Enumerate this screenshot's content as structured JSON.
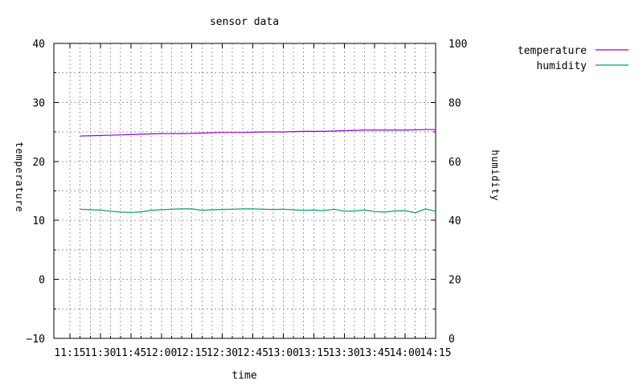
{
  "chart_data": {
    "type": "line",
    "title": "sensor data",
    "xlabel": "time",
    "ylabel_left": "temperature",
    "ylabel_right": "humidity",
    "x_ticks": [
      "11:15",
      "11:30",
      "11:45",
      "12:00",
      "12:15",
      "12:30",
      "12:45",
      "13:00",
      "13:15",
      "13:30",
      "13:45",
      "14:00",
      "14:15"
    ],
    "x_range": [
      "11:15",
      "14:15"
    ],
    "y_left": {
      "range": [
        -10,
        40
      ],
      "major_ticks": [
        -10,
        0,
        10,
        20,
        30,
        40
      ],
      "minor_step": 5
    },
    "y_right": {
      "range": [
        0,
        100
      ],
      "major_ticks": [
        0,
        20,
        40,
        60,
        80,
        100
      ],
      "minor_step": 10
    },
    "grid": true,
    "legend_position": "top-right, outside plot",
    "series": [
      {
        "name": "temperature",
        "axis": "left",
        "color": "#9400d3",
        "x": [
          "11:20",
          "11:30",
          "11:40",
          "11:50",
          "12:00",
          "12:10",
          "12:20",
          "12:30",
          "12:40",
          "12:50",
          "13:00",
          "13:10",
          "13:20",
          "13:30",
          "13:40",
          "13:50",
          "14:00",
          "14:10",
          "14:15"
        ],
        "values": [
          24.3,
          24.4,
          24.5,
          24.6,
          24.7,
          24.7,
          24.8,
          24.9,
          24.9,
          25.0,
          25.0,
          25.1,
          25.1,
          25.2,
          25.3,
          25.3,
          25.3,
          25.4,
          25.4
        ]
      },
      {
        "name": "humidity",
        "axis": "right",
        "color": "#009e73",
        "x": [
          "11:20",
          "11:25",
          "11:30",
          "11:35",
          "11:40",
          "11:45",
          "11:50",
          "11:55",
          "12:00",
          "12:05",
          "12:10",
          "12:15",
          "12:20",
          "12:25",
          "12:30",
          "12:35",
          "12:40",
          "12:45",
          "12:50",
          "12:55",
          "13:00",
          "13:05",
          "13:10",
          "13:15",
          "13:20",
          "13:25",
          "13:30",
          "13:35",
          "13:40",
          "13:45",
          "13:50",
          "13:55",
          "14:00",
          "14:05",
          "14:10",
          "14:15"
        ],
        "values": [
          43.8,
          43.6,
          43.5,
          43.1,
          42.8,
          42.7,
          42.9,
          43.4,
          43.6,
          43.8,
          43.9,
          43.9,
          43.4,
          43.6,
          43.7,
          43.8,
          43.9,
          43.9,
          43.8,
          43.7,
          43.8,
          43.6,
          43.4,
          43.5,
          43.3,
          43.8,
          43.1,
          43.2,
          43.5,
          43.0,
          42.8,
          43.2,
          43.3,
          42.6,
          43.9,
          43.1
        ]
      }
    ]
  }
}
